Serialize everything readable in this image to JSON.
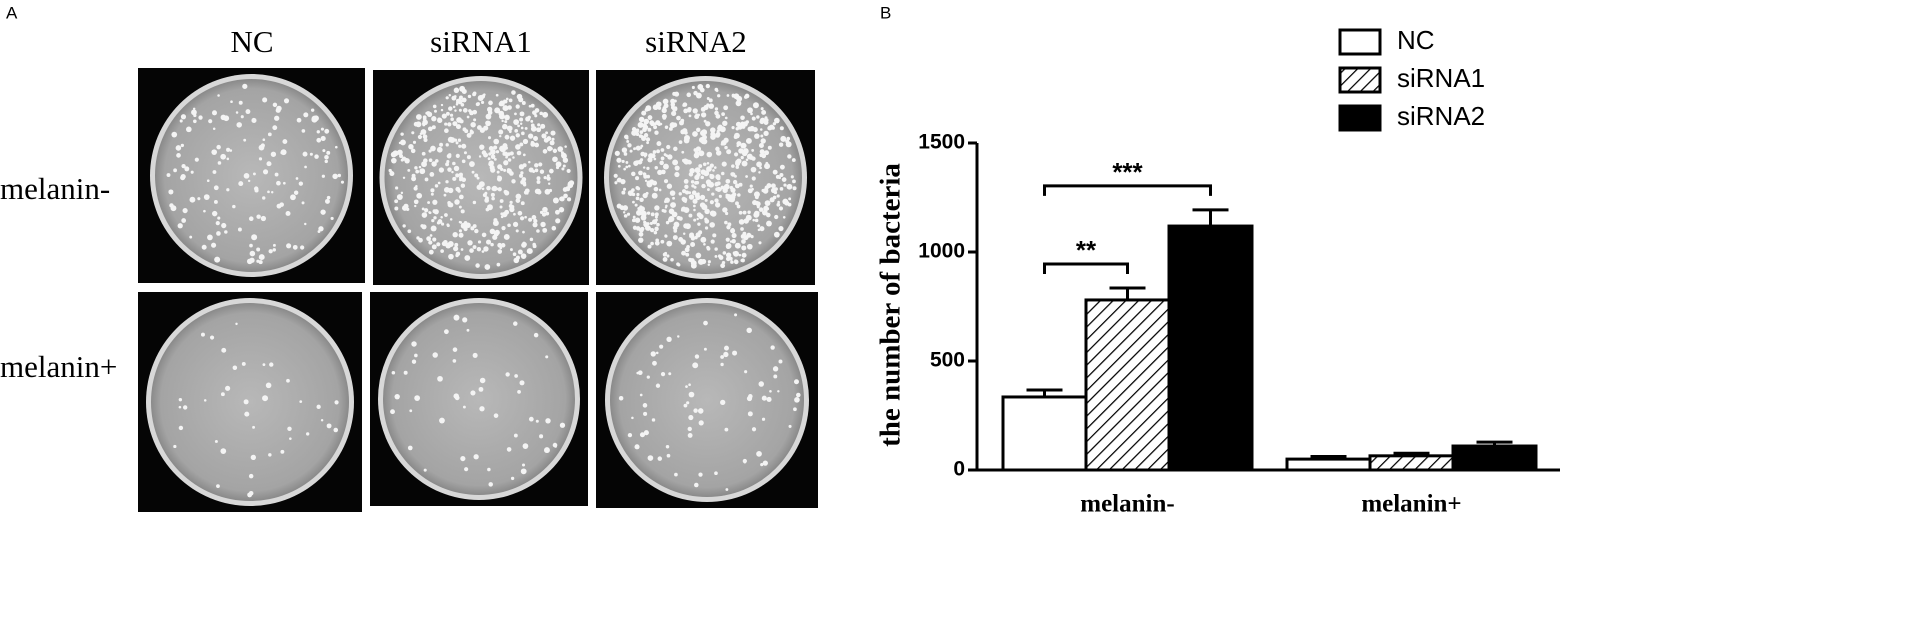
{
  "panel_a": {
    "label": "A",
    "columns": [
      "NC",
      "siRNA1",
      "siRNA2"
    ],
    "rows": [
      "melanin-",
      "melanin+"
    ]
  },
  "chart_data": {
    "type": "bar",
    "panel_label": "B",
    "y_label": "the number of bacteria",
    "categories": [
      "melanin-",
      "melanin+"
    ],
    "series": [
      {
        "name": "NC",
        "color": "#ffffff",
        "values": [
          335,
          50
        ],
        "errors": [
          32,
          12
        ]
      },
      {
        "name": "siRNA1",
        "color": "#ffffff",
        "pattern": "hatch",
        "values": [
          780,
          65
        ],
        "errors": [
          55,
          12
        ]
      },
      {
        "name": "siRNA2",
        "color": "#000000",
        "values": [
          1119,
          110
        ],
        "errors": [
          74,
          18
        ]
      }
    ],
    "annotations": [
      "**",
      "***"
    ],
    "ylim": [
      0,
      1500
    ],
    "yticks": [
      0,
      500,
      1000,
      1500
    ],
    "grid": false,
    "legend": "top-right"
  }
}
